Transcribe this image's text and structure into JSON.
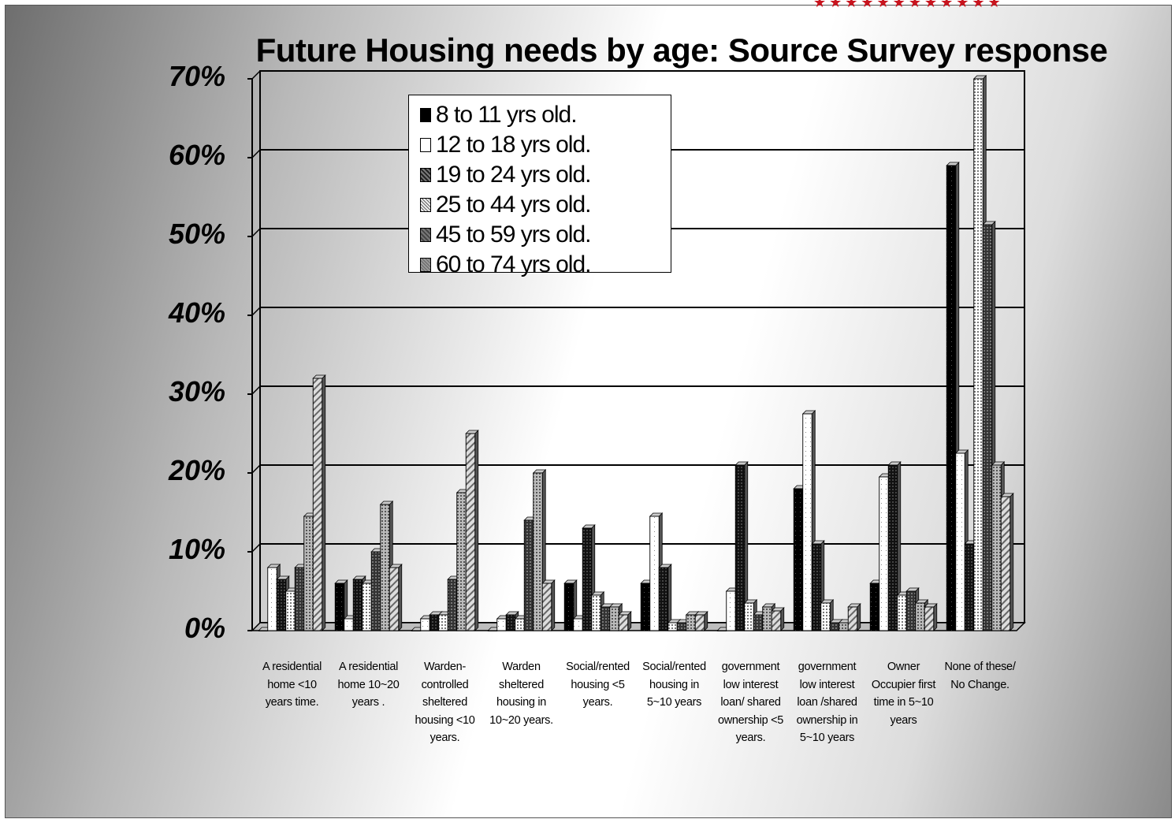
{
  "chart_data": {
    "type": "bar",
    "title": "Future Housing needs by age: Source Survey response",
    "ylim": [
      0,
      70
    ],
    "yticks": [
      "0%",
      "10%",
      "20%",
      "30%",
      "40%",
      "50%",
      "60%",
      "70%"
    ],
    "grid": true,
    "legend_position": "top-center",
    "categories": [
      "A residential home <10 years time.",
      "A residential home 10~20 years .",
      "Warden-controlled sheltered housing <10 years.",
      "Warden sheltered housing in 10~20 years.",
      "Social/rented housing <5 years.",
      "Social/rented housing in 5~10 years",
      "government low interest loan/ shared ownership <5 years.",
      "government low interest loan /shared ownership in 5~10 years",
      "Owner Occupier first time in 5~10 years",
      "None of these/ No Change."
    ],
    "series": [
      {
        "name": "8 to 11 yrs old.",
        "color": "#000000",
        "values": [
          0,
          6,
          0,
          0,
          6,
          6,
          0,
          18,
          6,
          59
        ]
      },
      {
        "name": "12 to 18 yrs old.",
        "color": "#ffffff",
        "values": [
          8,
          1.5,
          1.5,
          1.5,
          1.5,
          14.5,
          5,
          27.5,
          19.5,
          22.5
        ]
      },
      {
        "name": "19 to 24 yrs old.",
        "color": "#1a1a1a",
        "values": [
          6.5,
          6.5,
          2,
          2,
          13,
          8,
          21,
          11,
          21,
          11
        ]
      },
      {
        "name": "25 to 44 yrs old.",
        "color": "#e8e8e8",
        "values": [
          5,
          6,
          2,
          1.5,
          4.5,
          1,
          3.5,
          3.5,
          4.5,
          70
        ]
      },
      {
        "name": "45 to 59 yrs old.",
        "color": "#4a4a4a",
        "values": [
          8,
          10,
          6.5,
          14,
          3,
          1,
          2,
          1,
          5,
          51.5
        ]
      },
      {
        "name": "60 to 74 yrs old.",
        "color": "#9a9a9a",
        "values": [
          14.5,
          16,
          17.5,
          20,
          3,
          2,
          3,
          1,
          3.5,
          21
        ]
      },
      {
        "name": "",
        "color": "#c8c8c8",
        "values": [
          32,
          8,
          25,
          6,
          2,
          2,
          2.5,
          3,
          3,
          17
        ]
      }
    ],
    "category_lines": [
      [
        "A residential",
        "home <10",
        "years time."
      ],
      [
        "A residential",
        "home 10~20",
        "years ."
      ],
      [
        "Warden-",
        "controlled",
        "sheltered",
        "housing <10",
        "years."
      ],
      [
        "Warden",
        "sheltered",
        "housing in",
        "10~20 years."
      ],
      [
        "Social/rented",
        "housing <5",
        "years."
      ],
      [
        "Social/rented",
        "housing in",
        "5~10 years"
      ],
      [
        "government",
        "low interest",
        "loan/ shared",
        "ownership <5",
        "years."
      ],
      [
        "government",
        "low interest",
        "loan /shared",
        "ownership in",
        "5~10 years"
      ],
      [
        "Owner",
        "Occupier first",
        "time in 5~10",
        "years"
      ],
      [
        "None of these/",
        "No Change."
      ]
    ]
  },
  "decor": {
    "stars": "★★★★★★★★★★★★"
  }
}
